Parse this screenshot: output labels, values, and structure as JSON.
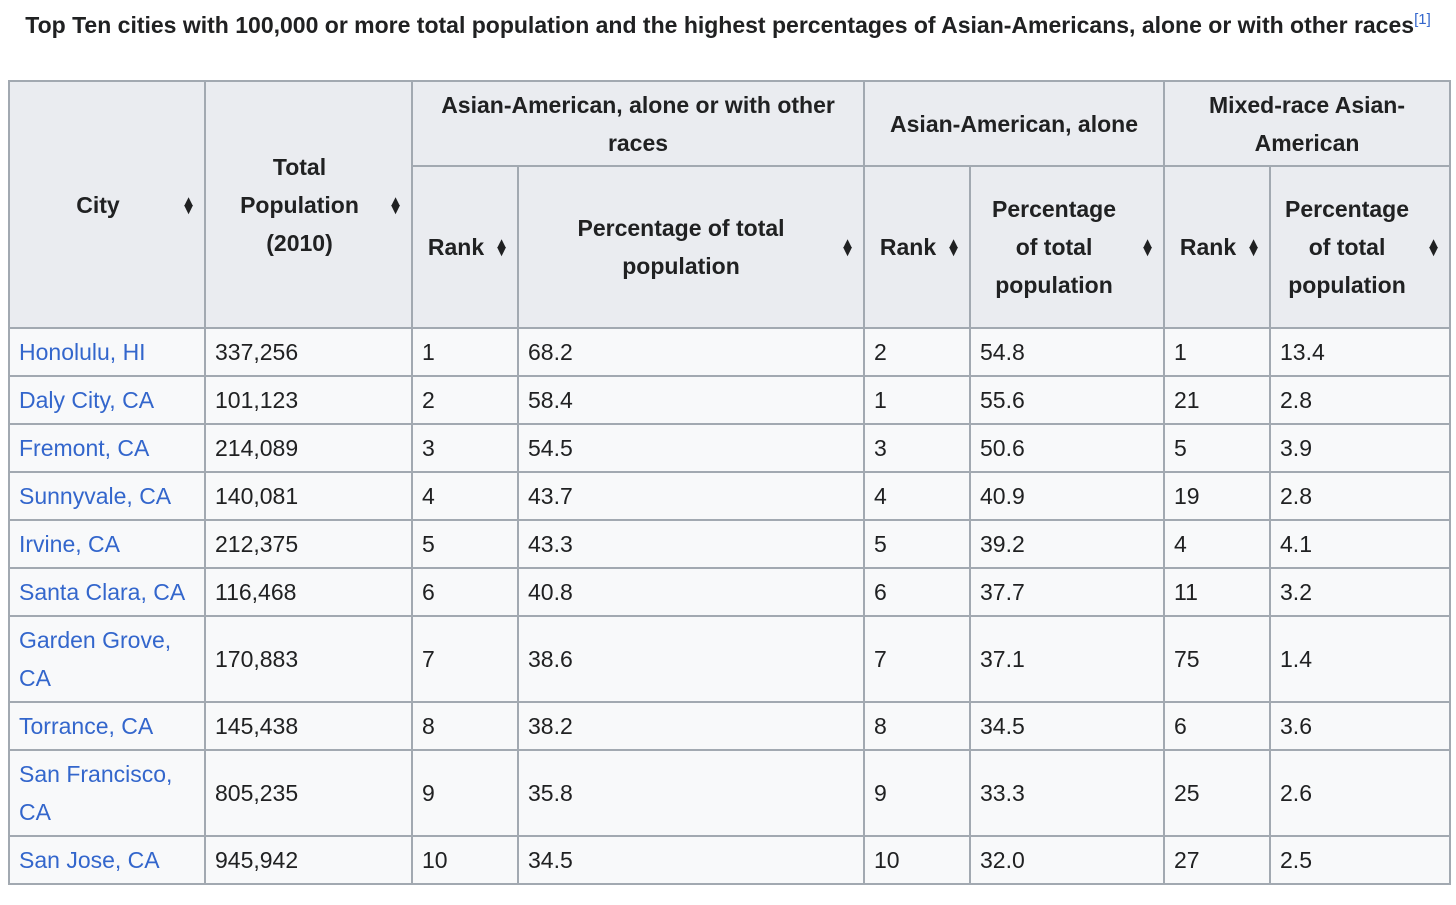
{
  "caption": {
    "text": "Top Ten cities with 100,000 or more total population and the highest percentages of Asian-Americans, alone or with other races",
    "ref": "[1]"
  },
  "headers": {
    "city": "City",
    "total_population": "Total Population (2010)",
    "group_alone_or_with": "Asian-American, alone or with other races",
    "group_alone": "Asian-American, alone",
    "group_mixed": "Mixed-race Asian-American",
    "rank": "Rank",
    "pct_total": "Percentage of total population",
    "pct_of": "Percentage of total population"
  },
  "sort_icon": "sort-arrows-icon",
  "link_color": "#3366cc",
  "rows": [
    {
      "city": "Honolulu, HI",
      "pop": "337,256",
      "rank_a": "1",
      "pct_a": "68.2",
      "rank_b": "2",
      "pct_b": "54.8",
      "rank_c": "1",
      "pct_c": "13.4"
    },
    {
      "city": "Daly City, CA",
      "pop": "101,123",
      "rank_a": "2",
      "pct_a": "58.4",
      "rank_b": "1",
      "pct_b": "55.6",
      "rank_c": "21",
      "pct_c": "2.8"
    },
    {
      "city": "Fremont, CA",
      "pop": "214,089",
      "rank_a": "3",
      "pct_a": "54.5",
      "rank_b": "3",
      "pct_b": "50.6",
      "rank_c": "5",
      "pct_c": "3.9"
    },
    {
      "city": "Sunnyvale, CA",
      "pop": "140,081",
      "rank_a": "4",
      "pct_a": "43.7",
      "rank_b": "4",
      "pct_b": "40.9",
      "rank_c": "19",
      "pct_c": "2.8"
    },
    {
      "city": "Irvine, CA",
      "pop": "212,375",
      "rank_a": "5",
      "pct_a": "43.3",
      "rank_b": "5",
      "pct_b": "39.2",
      "rank_c": "4",
      "pct_c": "4.1"
    },
    {
      "city": "Santa Clara, CA",
      "pop": "116,468",
      "rank_a": "6",
      "pct_a": "40.8",
      "rank_b": "6",
      "pct_b": "37.7",
      "rank_c": "11",
      "pct_c": "3.2"
    },
    {
      "city": "Garden Grove, CA",
      "pop": "170,883",
      "rank_a": "7",
      "pct_a": "38.6",
      "rank_b": "7",
      "pct_b": "37.1",
      "rank_c": "75",
      "pct_c": "1.4"
    },
    {
      "city": "Torrance, CA",
      "pop": "145,438",
      "rank_a": "8",
      "pct_a": "38.2",
      "rank_b": "8",
      "pct_b": "34.5",
      "rank_c": "6",
      "pct_c": "3.6"
    },
    {
      "city": "San Francisco, CA",
      "pop": "805,235",
      "rank_a": "9",
      "pct_a": "35.8",
      "rank_b": "9",
      "pct_b": "33.3",
      "rank_c": "25",
      "pct_c": "2.6"
    },
    {
      "city": "San Jose, CA",
      "pop": "945,942",
      "rank_a": "10",
      "pct_a": "34.5",
      "rank_b": "10",
      "pct_b": "32.0",
      "rank_c": "27",
      "pct_c": "2.5"
    }
  ]
}
